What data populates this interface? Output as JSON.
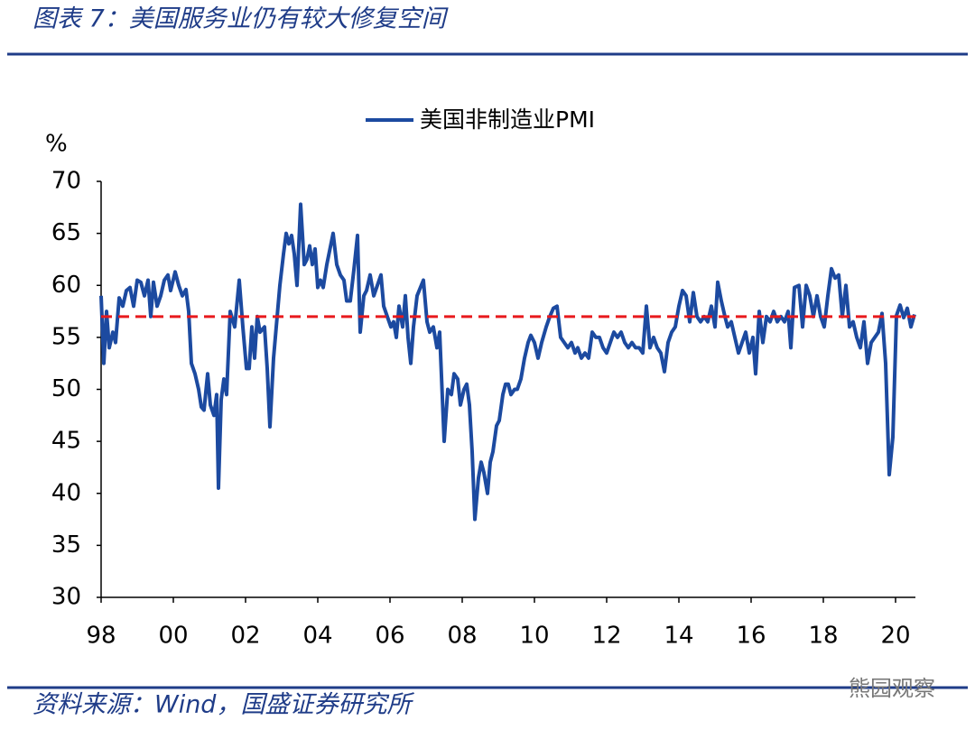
{
  "chart_data": {
    "type": "line",
    "title": "图表 7：美国服务业仍有较大修复空间",
    "y_label": "%",
    "source": "资料来源：Wind，国盛证券研究所",
    "watermark": "熊园观察",
    "xlim": [
      1998,
      2020.55
    ],
    "ylim": [
      30,
      70
    ],
    "yticks": [
      30,
      35,
      40,
      45,
      50,
      55,
      60,
      65,
      70
    ],
    "xticks": [
      {
        "value": 1998,
        "label": "98"
      },
      {
        "value": 2000,
        "label": "00"
      },
      {
        "value": 2002,
        "label": "02"
      },
      {
        "value": 2004,
        "label": "04"
      },
      {
        "value": 2006,
        "label": "06"
      },
      {
        "value": 2008,
        "label": "08"
      },
      {
        "value": 2010,
        "label": "10"
      },
      {
        "value": 2012,
        "label": "12"
      },
      {
        "value": 2014,
        "label": "14"
      },
      {
        "value": 2016,
        "label": "16"
      },
      {
        "value": 2018,
        "label": "18"
      },
      {
        "value": 2020,
        "label": "20"
      }
    ],
    "legend": "top",
    "reference_line": {
      "value": 57,
      "color": "#e8191c"
    },
    "x": [
      1998,
      1998.075,
      1998.15,
      1998.225,
      1998.325,
      1998.4,
      1998.5,
      1998.6,
      1998.7,
      1998.8,
      1998.9,
      1999,
      1999.1,
      1999.2,
      1999.3,
      1999.375,
      1999.45,
      1999.55,
      1999.65,
      1999.75,
      1999.85,
      1999.925,
      2000.05,
      2000.15,
      2000.25,
      2000.35,
      2000.425,
      2000.5,
      2000.6,
      2000.7,
      2000.775,
      2000.85,
      2000.95,
      2001.025,
      2001.125,
      2001.2,
      2001.25,
      2001.325,
      2001.4,
      2001.475,
      2001.575,
      2001.7,
      2001.825,
      2001.925,
      2002.025,
      2002.1,
      2002.175,
      2002.25,
      2002.325,
      2002.4,
      2002.525,
      2002.6,
      2002.675,
      2002.775,
      2002.875,
      2002.95,
      2003.05,
      2003.125,
      2003.2,
      2003.275,
      2003.35,
      2003.425,
      2003.525,
      2003.625,
      2003.7,
      2003.775,
      2003.85,
      2003.925,
      2004,
      2004.075,
      2004.15,
      2004.25,
      2004.425,
      2004.525,
      2004.625,
      2004.725,
      2004.8,
      2004.9,
      2005,
      2005.1,
      2005.175,
      2005.275,
      2005.35,
      2005.45,
      2005.55,
      2005.65,
      2005.75,
      2005.825,
      2005.925,
      2006.025,
      2006.1,
      2006.175,
      2006.25,
      2006.35,
      2006.425,
      2006.5,
      2006.575,
      2006.65,
      2006.75,
      2006.925,
      2007.025,
      2007.1,
      2007.2,
      2007.3,
      2007.375,
      2007.5,
      2007.6,
      2007.7,
      2007.775,
      2007.875,
      2007.95,
      2008.05,
      2008.125,
      2008.2,
      2008.275,
      2008.35,
      2008.45,
      2008.525,
      2008.6,
      2008.7,
      2008.775,
      2008.85,
      2008.95,
      2009.025,
      2009.125,
      2009.2,
      2009.275,
      2009.35,
      2009.45,
      2009.525,
      2009.625,
      2009.725,
      2009.825,
      2009.9,
      2010,
      2010.1,
      2010.2,
      2010.325,
      2010.425,
      2010.525,
      2010.625,
      2010.725,
      2010.825,
      2010.925,
      2011.025,
      2011.125,
      2011.2,
      2011.3,
      2011.4,
      2011.5,
      2011.6,
      2011.7,
      2011.8,
      2011.9,
      2012,
      2012.1,
      2012.2,
      2012.3,
      2012.4,
      2012.5,
      2012.6,
      2012.7,
      2012.8,
      2012.9,
      2013,
      2013.1,
      2013.2,
      2013.3,
      2013.4,
      2013.5,
      2013.6,
      2013.7,
      2013.8,
      2013.9,
      2014,
      2014.1,
      2014.2,
      2014.3,
      2014.4,
      2014.5,
      2014.6,
      2014.7,
      2014.8,
      2014.9,
      2015,
      2015.075,
      2015.175,
      2015.275,
      2015.35,
      2015.45,
      2015.55,
      2015.65,
      2015.75,
      2015.85,
      2015.95,
      2016.05,
      2016.125,
      2016.225,
      2016.325,
      2016.425,
      2016.525,
      2016.625,
      2016.725,
      2016.825,
      2016.925,
      2017.025,
      2017.1,
      2017.2,
      2017.325,
      2017.425,
      2017.525,
      2017.625,
      2017.725,
      2017.825,
      2017.925,
      2018.025,
      2018.125,
      2018.225,
      2018.325,
      2018.425,
      2018.525,
      2018.625,
      2018.725,
      2018.825,
      2018.925,
      2019.025,
      2019.125,
      2019.225,
      2019.325,
      2019.425,
      2019.525,
      2019.625,
      2019.725,
      2019.825,
      2019.925,
      2020.025,
      2020.125,
      2020.225,
      2020.325,
      2020.425,
      2020.525
    ],
    "series": [
      {
        "name": "美国非制造业PMI",
        "color": "#1c4aa0",
        "values": [
          59,
          52.5,
          57.5,
          54,
          55.5,
          54.5,
          58.8,
          58,
          59.5,
          59.8,
          58,
          60.5,
          60.3,
          59,
          60.5,
          57,
          60.3,
          58,
          59,
          60.5,
          61,
          59.5,
          61.3,
          60,
          59,
          59.6,
          57.5,
          52.5,
          51.5,
          50,
          48.3,
          48,
          51.5,
          48.5,
          47.5,
          49.5,
          40.5,
          49,
          51,
          49.5,
          57.5,
          56,
          60.5,
          56,
          52,
          52,
          56,
          53,
          57,
          55.5,
          56,
          52,
          46.4,
          53,
          57,
          60,
          63,
          65,
          64,
          64.8,
          63,
          60,
          67.8,
          62,
          62.5,
          63.8,
          62,
          63.5,
          59.8,
          60.5,
          59.8,
          62,
          65,
          62,
          61,
          60.5,
          58.5,
          58.5,
          61.5,
          64.8,
          55.5,
          59,
          59.5,
          61,
          59,
          60,
          61,
          58,
          57,
          56,
          56.5,
          55,
          58,
          56,
          59,
          55,
          52.5,
          56,
          59,
          60.5,
          56.5,
          55.5,
          56,
          54,
          55.5,
          45,
          50,
          49.5,
          51.5,
          51,
          48.5,
          50,
          50.5,
          48.5,
          44,
          37.5,
          41.5,
          43,
          42,
          40,
          43,
          44,
          46.5,
          47,
          49.5,
          50.5,
          50.5,
          49.5,
          50,
          50,
          51,
          53,
          54.5,
          55.2,
          54.5,
          53,
          54.5,
          56,
          57,
          57.8,
          58,
          55,
          54.5,
          54,
          54.5,
          53.5,
          54,
          53,
          53.5,
          53,
          55.5,
          55,
          55,
          54,
          53.5,
          54.5,
          55.5,
          55,
          55.5,
          54.5,
          54,
          54.5,
          54,
          54,
          53.5,
          58,
          54,
          55,
          54,
          53.5,
          51.7,
          54.5,
          55.5,
          56,
          58,
          59.5,
          59,
          56.5,
          59.3,
          57,
          56.5,
          57,
          56.5,
          58,
          56,
          60.3,
          58.5,
          57,
          56,
          56.5,
          55,
          53.5,
          54.5,
          55.5,
          53.5,
          55,
          51.5,
          57.5,
          54.5,
          57,
          56.5,
          57.5,
          56.5,
          57,
          56.5,
          57.5,
          54,
          59.8,
          60,
          56,
          60,
          59,
          57,
          59,
          57,
          56,
          59,
          61.6,
          60.7,
          61,
          57,
          60,
          56,
          56.5,
          55,
          54,
          56.5,
          52.5,
          54.5,
          55,
          55.5,
          57.3,
          52.5,
          41.8,
          45.4,
          57.1,
          58.1,
          56.9,
          57.8,
          56,
          57.2
        ]
      }
    ]
  }
}
